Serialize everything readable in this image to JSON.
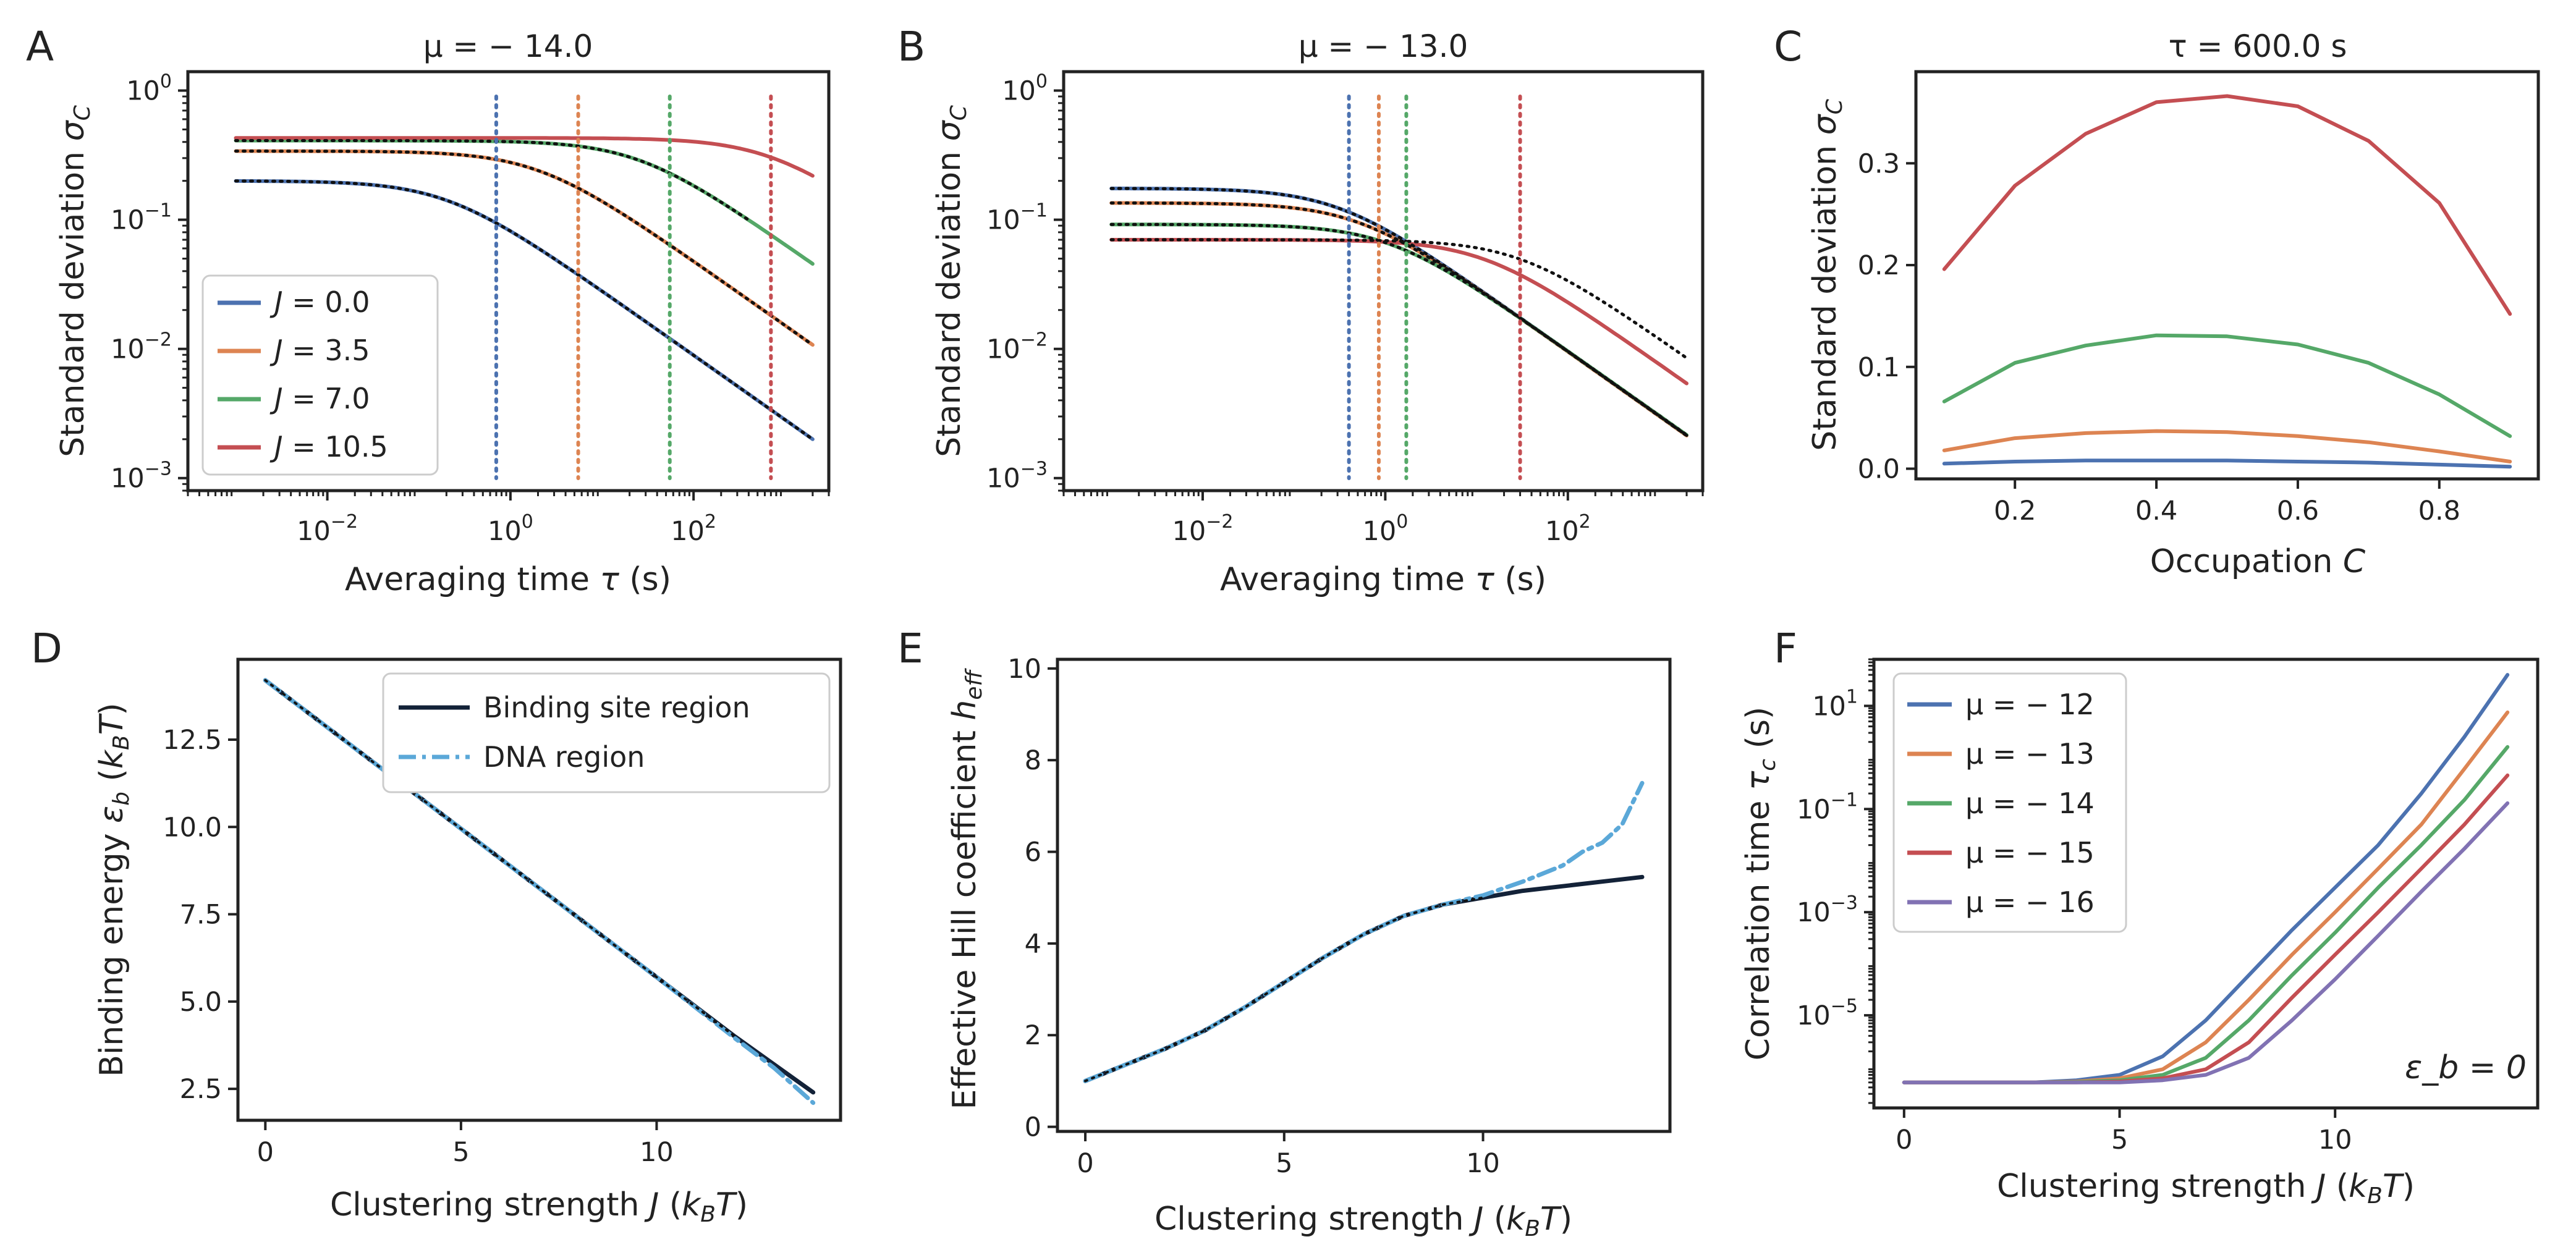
{
  "figure": {
    "panel_letters": [
      "A",
      "B",
      "C",
      "D",
      "E",
      "F"
    ],
    "annotation_F": "ε_b = 0"
  },
  "colors": {
    "blue": "#4c72b0",
    "orange": "#dd8452",
    "green": "#55a868",
    "red": "#c44e52",
    "purple": "#8172b3",
    "navy": "#132238",
    "lightblue": "#5ba8d8",
    "black": "#111111"
  },
  "chart_data": [
    {
      "panel": "A",
      "type": "line",
      "title": "μ = − 14.0",
      "xlabel": "Averaging time τ (s)",
      "ylabel": "Standard deviation σ_C",
      "xscale": "log",
      "yscale": "log",
      "xlim": [
        0.0003,
        3000
      ],
      "ylim": [
        0.0008,
        1.4
      ],
      "x_ticks": [
        0.01,
        1,
        100
      ],
      "x_tick_labels": [
        "10^-2",
        "10^0",
        "10^2"
      ],
      "y_ticks": [
        0.001,
        0.01,
        0.1,
        1
      ],
      "y_tick_labels": [
        "10^-3",
        "10^-2",
        "10^-1",
        "10^0"
      ],
      "legend_position": "lower-left",
      "series": [
        {
          "name": "J = 0.0",
          "color": "blue",
          "plateau": 0.2,
          "tc": 0.2,
          "tmax": 2000
        },
        {
          "name": "J = 3.5",
          "color": "orange",
          "plateau": 0.34,
          "tc": 2.0,
          "tmax": 2000
        },
        {
          "name": "J = 7.0",
          "color": "green",
          "plateau": 0.41,
          "tc": 25,
          "tmax": 2000
        },
        {
          "name": "J = 10.5",
          "color": "red",
          "plateau": 0.43,
          "tc": 700,
          "tmax": 2000
        }
      ],
      "vlines": [
        {
          "x": 0.7,
          "color": "blue"
        },
        {
          "x": 5.5,
          "color": "orange"
        },
        {
          "x": 55,
          "color": "green"
        },
        {
          "x": 700,
          "color": "red"
        }
      ],
      "dotted_fits": [
        {
          "plateau": 0.2,
          "tc": 0.2,
          "tmax": 2000
        },
        {
          "plateau": 0.34,
          "tc": 2.0,
          "tmax": 2000
        },
        {
          "plateau": 0.41,
          "tc": 25,
          "tmax": 400
        }
      ]
    },
    {
      "panel": "B",
      "type": "line",
      "title": "μ = − 13.0",
      "xlabel": "Averaging time τ (s)",
      "ylabel": "Standard deviation σ_C",
      "xscale": "log",
      "yscale": "log",
      "xlim": [
        0.0003,
        3000
      ],
      "ylim": [
        0.0008,
        1.4
      ],
      "x_ticks": [
        0.01,
        1,
        100
      ],
      "x_tick_labels": [
        "10^-2",
        "10^0",
        "10^2"
      ],
      "y_ticks": [
        0.001,
        0.01,
        0.1,
        1
      ],
      "y_tick_labels": [
        "10^-3",
        "10^-2",
        "10^-1",
        "10^0"
      ],
      "series": [
        {
          "name": "J = 0.0",
          "color": "blue",
          "plateau": 0.175,
          "tc": 0.3,
          "tmax": 2000
        },
        {
          "name": "J = 3.5",
          "color": "orange",
          "plateau": 0.135,
          "tc": 0.5,
          "tmax": 2000
        },
        {
          "name": "J = 7.0",
          "color": "green",
          "plateau": 0.092,
          "tc": 1.1,
          "tmax": 2000
        },
        {
          "name": "J = 10.5",
          "color": "red",
          "plateau": 0.07,
          "tc": 12,
          "tmax": 2000
        }
      ],
      "vlines": [
        {
          "x": 0.4,
          "color": "blue"
        },
        {
          "x": 0.85,
          "color": "orange"
        },
        {
          "x": 1.7,
          "color": "green"
        },
        {
          "x": 30,
          "color": "red"
        }
      ],
      "dotted_fits": [
        {
          "plateau": 0.175,
          "tc": 0.3,
          "tmax": 2000
        },
        {
          "plateau": 0.135,
          "tc": 0.5,
          "tmax": 2000
        },
        {
          "plateau": 0.092,
          "tc": 1.1,
          "tmax": 2000
        },
        {
          "plateau": 0.07,
          "tc": 30,
          "tmax": 2000
        }
      ]
    },
    {
      "panel": "C",
      "type": "line",
      "title": "τ = 600.0 s",
      "xlabel": "Occupation C",
      "ylabel": "Standard deviation σ_C",
      "xlim": [
        0.06,
        0.94
      ],
      "ylim": [
        -0.01,
        0.39
      ],
      "x_ticks": [
        0.2,
        0.4,
        0.6,
        0.8
      ],
      "x_tick_labels": [
        "0.2",
        "0.4",
        "0.6",
        "0.8"
      ],
      "y_ticks": [
        0.0,
        0.1,
        0.2,
        0.3
      ],
      "y_tick_labels": [
        "0.0",
        "0.1",
        "0.2",
        "0.3"
      ],
      "x": [
        0.1,
        0.2,
        0.3,
        0.4,
        0.5,
        0.6,
        0.7,
        0.8,
        0.9
      ],
      "series": [
        {
          "name": "J = 0.0",
          "color": "blue",
          "values": [
            0.005,
            0.007,
            0.008,
            0.008,
            0.008,
            0.007,
            0.006,
            0.004,
            0.002
          ]
        },
        {
          "name": "J = 3.5",
          "color": "orange",
          "values": [
            0.018,
            0.03,
            0.035,
            0.037,
            0.036,
            0.032,
            0.026,
            0.017,
            0.007
          ]
        },
        {
          "name": "J = 7.0",
          "color": "green",
          "values": [
            0.066,
            0.104,
            0.121,
            0.131,
            0.13,
            0.122,
            0.104,
            0.073,
            0.032
          ]
        },
        {
          "name": "J = 10.5",
          "color": "red",
          "values": [
            0.196,
            0.278,
            0.329,
            0.36,
            0.366,
            0.356,
            0.322,
            0.261,
            0.152
          ]
        }
      ]
    },
    {
      "panel": "D",
      "type": "line",
      "xlabel": "Clustering strength J (k_B T)",
      "ylabel": "Binding energy ε_b (k_B T)",
      "xlim": [
        -0.7,
        14.7
      ],
      "ylim": [
        1.6,
        14.8
      ],
      "x_ticks": [
        0,
        5,
        10
      ],
      "x_tick_labels": [
        "0",
        "5",
        "10"
      ],
      "y_ticks": [
        2.5,
        5.0,
        7.5,
        10.0,
        12.5
      ],
      "y_tick_labels": [
        "2.5",
        "5.0",
        "7.5",
        "10.0",
        "12.5"
      ],
      "legend_position": "top-right",
      "series": [
        {
          "name": "Binding site region",
          "color": "navy",
          "dash": "solid",
          "x": [
            0,
            2,
            4,
            6,
            8,
            10,
            12,
            14
          ],
          "values": [
            14.2,
            12.5,
            10.8,
            9.1,
            7.4,
            5.7,
            4.0,
            2.4
          ]
        },
        {
          "name": "DNA region",
          "color": "lightblue",
          "dash": "dashdot",
          "x": [
            0,
            2,
            4,
            6,
            8,
            10,
            12,
            13,
            14
          ],
          "values": [
            14.2,
            12.5,
            10.8,
            9.1,
            7.4,
            5.7,
            3.95,
            3.1,
            2.1
          ]
        }
      ],
      "black_dotted": {
        "x": [
          0,
          2,
          4,
          6,
          8,
          10,
          12
        ],
        "values": [
          14.2,
          12.5,
          10.8,
          9.1,
          7.4,
          5.7,
          4.0
        ]
      }
    },
    {
      "panel": "E",
      "type": "line",
      "xlabel": "Clustering strength J (k_B T)",
      "ylabel": "Effective Hill coefficient h_eff",
      "xlim": [
        -0.7,
        14.7
      ],
      "ylim": [
        -0.1,
        10.2
      ],
      "x_ticks": [
        0,
        5,
        10
      ],
      "x_tick_labels": [
        "0",
        "5",
        "10"
      ],
      "y_ticks": [
        0,
        2,
        4,
        6,
        8,
        10
      ],
      "y_tick_labels": [
        "0",
        "2",
        "4",
        "6",
        "8",
        "10"
      ],
      "series": [
        {
          "name": "Binding site region",
          "color": "navy",
          "dash": "solid",
          "x": [
            0,
            1,
            2,
            3,
            4,
            5,
            6,
            7,
            8,
            9,
            10,
            11,
            12,
            13,
            14
          ],
          "values": [
            1.0,
            1.35,
            1.7,
            2.1,
            2.6,
            3.15,
            3.7,
            4.2,
            4.6,
            4.85,
            5.0,
            5.15,
            5.25,
            5.35,
            5.45
          ]
        },
        {
          "name": "DNA region",
          "color": "lightblue",
          "dash": "dashdot",
          "x": [
            0,
            1,
            2,
            3,
            4,
            5,
            6,
            7,
            8,
            9,
            10,
            11,
            12,
            12.5,
            13,
            13.5,
            14
          ],
          "values": [
            1.0,
            1.35,
            1.7,
            2.1,
            2.6,
            3.15,
            3.7,
            4.2,
            4.6,
            4.85,
            5.05,
            5.35,
            5.7,
            6.0,
            6.2,
            6.6,
            7.5
          ]
        }
      ],
      "black_dotted": {
        "x": [
          0,
          1,
          2,
          3,
          4,
          5,
          6,
          7,
          8,
          9,
          10
        ],
        "values": [
          1.0,
          1.35,
          1.7,
          2.1,
          2.6,
          3.15,
          3.7,
          4.2,
          4.6,
          4.85,
          5.0
        ]
      }
    },
    {
      "panel": "F",
      "type": "line",
      "xlabel": "Clustering strength J (k_B T)",
      "ylabel": "Correlation time τ_c (s)",
      "yscale": "log",
      "xlim": [
        -0.7,
        14.7
      ],
      "ylim": [
        1.6e-07,
        80
      ],
      "x_ticks": [
        0,
        5,
        10
      ],
      "x_tick_labels": [
        "0",
        "5",
        "10"
      ],
      "y_ticks": [
        1e-05,
        0.001,
        0.1,
        10
      ],
      "y_tick_labels": [
        "10^-5",
        "10^-3",
        "10^-1",
        "10^1"
      ],
      "legend_position": "top-left",
      "x": [
        0,
        1,
        2,
        3,
        4,
        5,
        6,
        7,
        8,
        9,
        10,
        11,
        12,
        13,
        14
      ],
      "series": [
        {
          "name": "μ = − 12",
          "color": "blue",
          "values": [
            5e-07,
            5e-07,
            5e-07,
            5e-07,
            5.5e-07,
            7e-07,
            1.6e-06,
            8e-06,
            6e-05,
            0.00045,
            0.003,
            0.02,
            0.2,
            2.5,
            40
          ]
        },
        {
          "name": "μ = − 13",
          "color": "orange",
          "values": [
            5e-07,
            5e-07,
            5e-07,
            5e-07,
            5.2e-07,
            6e-07,
            9e-07,
            3e-06,
            2e-05,
            0.00015,
            0.001,
            0.007,
            0.05,
            0.6,
            7.5
          ]
        },
        {
          "name": "μ = − 14",
          "color": "green",
          "values": [
            5e-07,
            5e-07,
            5e-07,
            5e-07,
            5.1e-07,
            5.5e-07,
            7e-07,
            1.5e-06,
            8e-06,
            6e-05,
            0.0004,
            0.003,
            0.02,
            0.15,
            1.6
          ]
        },
        {
          "name": "μ = − 15",
          "color": "red",
          "values": [
            5e-07,
            5e-07,
            5e-07,
            5e-07,
            5e-07,
            5.2e-07,
            6e-07,
            9e-07,
            3e-06,
            2.2e-05,
            0.00015,
            0.001,
            0.007,
            0.05,
            0.45
          ]
        },
        {
          "name": "μ = − 16",
          "color": "purple",
          "values": [
            5e-07,
            5e-07,
            5e-07,
            5e-07,
            5e-07,
            5e-07,
            5.5e-07,
            7e-07,
            1.5e-06,
            8e-06,
            5e-05,
            0.00035,
            0.0025,
            0.017,
            0.13
          ]
        }
      ]
    }
  ]
}
